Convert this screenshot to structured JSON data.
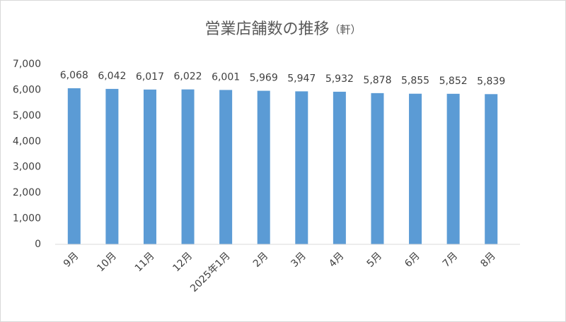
{
  "chart_data": {
    "type": "bar",
    "title": "営業店舗数の推移",
    "subtitle": "（軒）",
    "categories": [
      "9月",
      "10月",
      "11月",
      "12月",
      "2025年1月",
      "2月",
      "3月",
      "4月",
      "5月",
      "6月",
      "7月",
      "8月"
    ],
    "values": [
      6068,
      6042,
      6017,
      6022,
      6001,
      5969,
      5947,
      5932,
      5878,
      5855,
      5852,
      5839
    ],
    "value_labels": [
      "6,068",
      "6,042",
      "6,017",
      "6,022",
      "6,001",
      "5,969",
      "5,947",
      "5,932",
      "5,878",
      "5,855",
      "5,852",
      "5,839"
    ],
    "color": "#5b9bd5",
    "ylim": [
      0,
      7000
    ],
    "yticks": [
      0,
      {
        "value": 1000,
        "label": "1,000"
      },
      {
        "value": 2000,
        "label": "2,000"
      },
      {
        "value": 3000,
        "label": "3,000"
      },
      {
        "value": 4000,
        "label": "4,000"
      },
      {
        "value": 5000,
        "label": "5,000"
      },
      {
        "value": 6000,
        "label": "6,000"
      },
      {
        "value": 7000,
        "label": "7,000"
      }
    ],
    "grid": false
  }
}
